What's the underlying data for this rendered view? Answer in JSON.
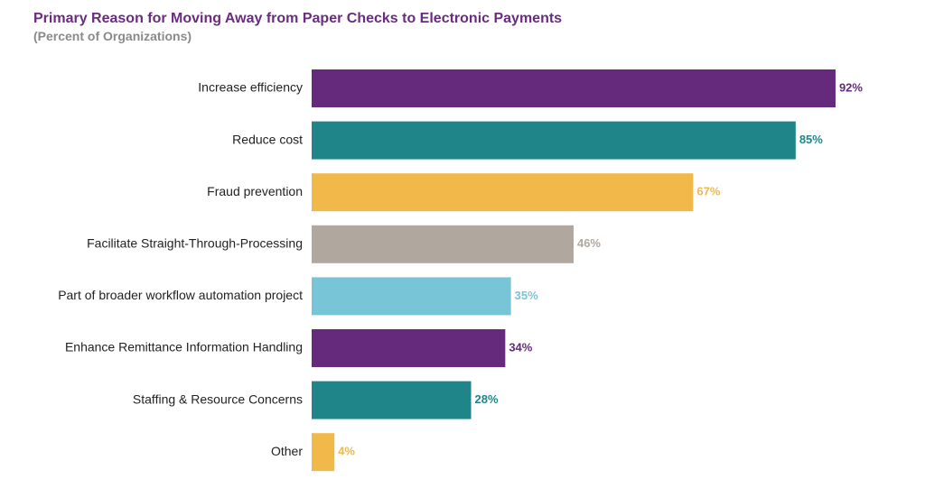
{
  "chart_data": {
    "type": "bar",
    "orientation": "horizontal",
    "title": "Primary Reason for Moving Away from Paper Checks to Electronic Payments",
    "subtitle": "(Percent of Organizations)",
    "categories": [
      "Increase efficiency",
      "Reduce cost",
      "Fraud prevention",
      "Facilitate Straight-Through-Processing",
      "Part of broader workflow automation project",
      "Enhance Remittance Information Handling",
      "Staffing & Resource Concerns",
      "Other"
    ],
    "values": [
      92,
      85,
      67,
      46,
      35,
      34,
      28,
      4
    ],
    "value_labels": [
      "92%",
      "85%",
      "67%",
      "46%",
      "35%",
      "34%",
      "28%",
      "4%"
    ],
    "colors": [
      "#652a7c",
      "#1f8589",
      "#f0b94a",
      "#b0a89e",
      "#79c5d8",
      "#652a7c",
      "#1f8589",
      "#f0b94a"
    ],
    "xlim": [
      0,
      100
    ],
    "grid": false,
    "axes_visible": false
  }
}
